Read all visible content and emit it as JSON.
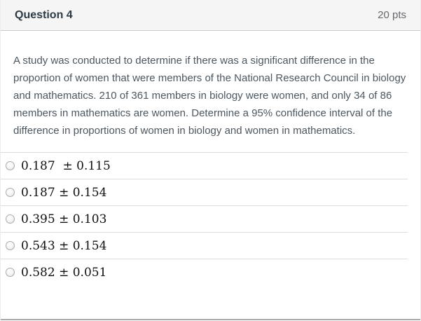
{
  "header": {
    "title": "Question 4",
    "points": "20 pts"
  },
  "question": {
    "text": "A study was conducted to determine if there was a significant difference in the proportion of women that were members of the National Research Council in biology and mathematics. 210 of 361 members in biology were women, and only 34 of 86 members in mathematics are women. Determine a 95% confidence interval of the difference in proportions of women in biology and women in mathematics."
  },
  "options": [
    {
      "label": "0.187  ± 0.115"
    },
    {
      "label": "0.187 ± 0.154"
    },
    {
      "label": "0.395 ± 0.103"
    },
    {
      "label": "0.543 ± 0.154"
    },
    {
      "label": "0.582 ± 0.051"
    }
  ],
  "colors": {
    "header_bg": "#f5f5f5",
    "header_border": "#c7cdd1",
    "title_text": "#2d3b45",
    "points_text": "#66696c",
    "body_text": "#4c5760",
    "divider": "#dcdcdc",
    "option_text": "#101010",
    "bottom_bar": "#a9a9a9"
  }
}
